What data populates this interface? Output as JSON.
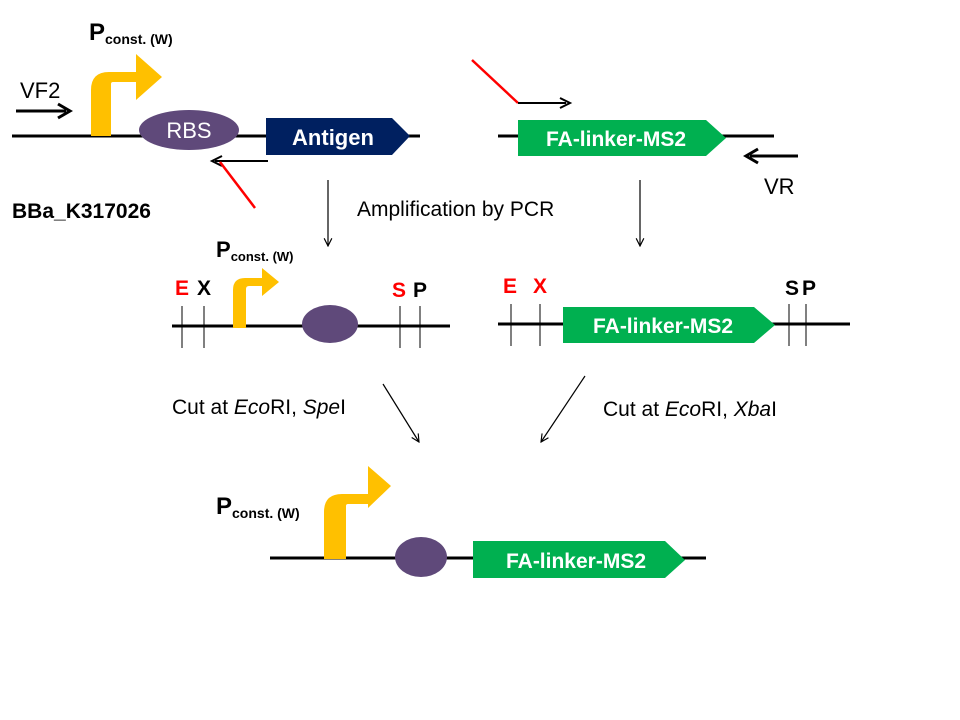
{
  "colors": {
    "promoter": "#FFC000",
    "rbs": "#5F497A",
    "antigen": "#002060",
    "fusion": "#00B050",
    "site_red": "#FF0000",
    "primer_tail": "#FF0000",
    "line": "#000000"
  },
  "top": {
    "promoter_label": {
      "main": "P",
      "sub": "const. (W)"
    },
    "primer_forward": "VF2",
    "rbs_label": "RBS",
    "gene_label": "Antigen",
    "part_id": "BBa_K317026",
    "fusion_label": "FA-linker-MS2",
    "primer_reverse": "VR"
  },
  "step1_label": "Amplification by PCR",
  "middle_left": {
    "promoter_label": {
      "main": "P",
      "sub": "const. (W)"
    },
    "sites": [
      "E",
      "X",
      "S",
      "P"
    ]
  },
  "middle_right": {
    "sites": [
      "E",
      "X",
      "S",
      "P"
    ],
    "fusion_label": "FA-linker-MS2"
  },
  "cut_left": {
    "prefix": "Cut at ",
    "enzyme1": "Eco",
    "enzyme1_tail": "RI, ",
    "enzyme2": "Spe",
    "enzyme2_tail": "I"
  },
  "cut_right": {
    "prefix": "Cut at ",
    "enzyme1": "Eco",
    "enzyme1_tail": "RI, ",
    "enzyme2": "Xba",
    "enzyme2_tail": "I"
  },
  "bottom": {
    "promoter_label": {
      "main": "P",
      "sub": "const. (W)"
    },
    "fusion_label": "FA-linker-MS2"
  }
}
